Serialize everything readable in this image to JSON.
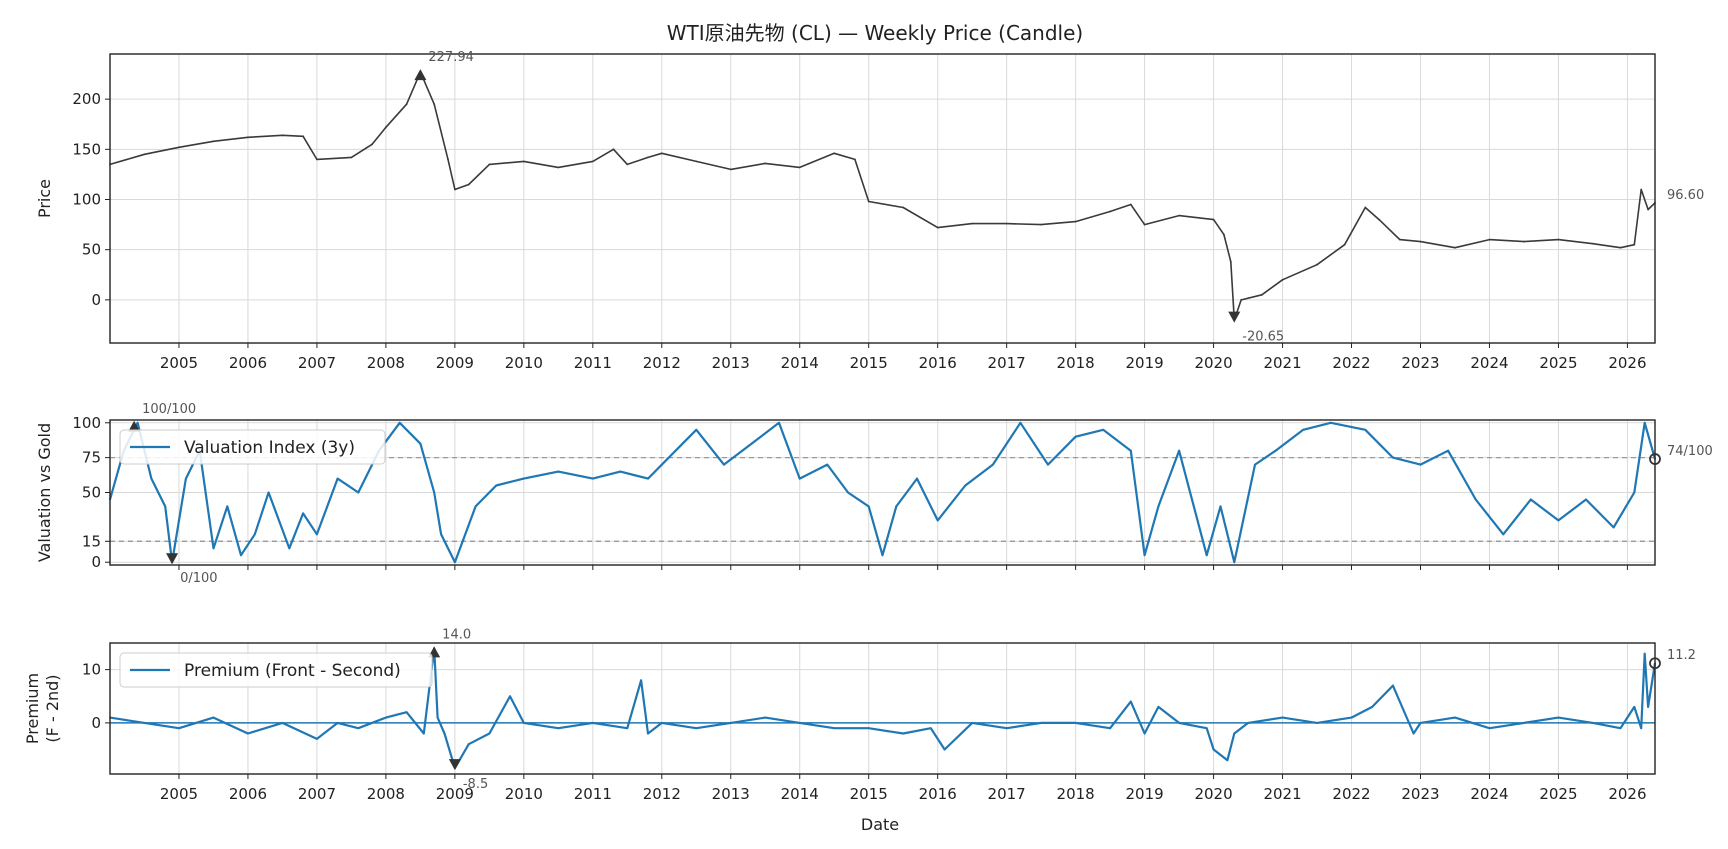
{
  "figure": {
    "title": "WTI原油先物 (CL) — Weekly Price (Candle)",
    "xlabel": "Date",
    "x_tick_labels": [
      "2005",
      "2006",
      "2007",
      "2008",
      "2009",
      "2010",
      "2011",
      "2012",
      "2013",
      "2014",
      "2015",
      "2016",
      "2017",
      "2018",
      "2019",
      "2020",
      "2021",
      "2022",
      "2023",
      "2024",
      "2025",
      "2026"
    ],
    "x_range": [
      2004.0,
      2026.4
    ],
    "colors": {
      "price": "#3a3a3a",
      "series": "#1f77b4",
      "grid": "#d9d9d9",
      "ref": "#999999",
      "marker": "#333333"
    }
  },
  "chart_data": [
    {
      "type": "line",
      "subtype": "candlestick-weekly",
      "ylabel": "Price",
      "ylim": [
        -43,
        245
      ],
      "yticks": [
        0,
        50,
        100,
        150,
        200
      ],
      "grid": true,
      "series": [
        {
          "x": [
            2004.0,
            2004.5,
            2005.0,
            2005.5,
            2006.0,
            2006.5,
            2006.8,
            2007.0,
            2007.5,
            2007.8,
            2008.0,
            2008.3,
            2008.5,
            2008.7,
            2008.9,
            2009.0,
            2009.2,
            2009.5,
            2010.0,
            2010.5,
            2011.0,
            2011.3,
            2011.5,
            2011.8,
            2012.0,
            2012.5,
            2013.0,
            2013.5,
            2014.0,
            2014.5,
            2014.8,
            2015.0,
            2015.5,
            2016.0,
            2016.5,
            2017.0,
            2017.5,
            2018.0,
            2018.5,
            2018.8,
            2019.0,
            2019.5,
            2020.0,
            2020.15,
            2020.25,
            2020.3,
            2020.4,
            2020.7,
            2021.0,
            2021.5,
            2021.9,
            2022.2,
            2022.4,
            2022.7,
            2023.0,
            2023.5,
            2024.0,
            2024.5,
            2025.0,
            2025.5,
            2025.9,
            2026.1,
            2026.2,
            2026.3,
            2026.4
          ],
          "y": [
            135,
            145,
            152,
            158,
            162,
            164,
            163,
            140,
            142,
            155,
            172,
            195,
            227,
            195,
            140,
            110,
            115,
            135,
            138,
            132,
            138,
            150,
            135,
            142,
            146,
            138,
            130,
            136,
            132,
            146,
            140,
            98,
            92,
            72,
            76,
            76,
            75,
            78,
            88,
            95,
            75,
            84,
            80,
            65,
            38,
            -20,
            0,
            5,
            20,
            35,
            55,
            92,
            80,
            60,
            58,
            52,
            60,
            58,
            60,
            56,
            52,
            55,
            110,
            90,
            96.6
          ]
        }
      ],
      "annotations": [
        {
          "label": "227.94",
          "x": 2008.5,
          "y": 227.94,
          "kind": "max"
        },
        {
          "label": "-20.65",
          "x": 2020.3,
          "y": -20.65,
          "kind": "min"
        },
        {
          "label": "96.60",
          "x": 2026.4,
          "y": 96.6,
          "kind": "last"
        }
      ]
    },
    {
      "type": "line",
      "ylabel": "Valuation vs Gold",
      "ylim": [
        -2,
        102
      ],
      "yticks": [
        0,
        15,
        50,
        75,
        100
      ],
      "grid": true,
      "reference_lines": [
        75,
        15
      ],
      "legend": {
        "placement": "top-left",
        "entries": [
          "Valuation Index (3y)"
        ]
      },
      "series": [
        {
          "name": "Valuation Index (3y)",
          "x": [
            2004.0,
            2004.2,
            2004.4,
            2004.6,
            2004.8,
            2004.9,
            2005.1,
            2005.3,
            2005.5,
            2005.7,
            2005.9,
            2006.1,
            2006.3,
            2006.6,
            2006.8,
            2007.0,
            2007.3,
            2007.6,
            2007.9,
            2008.2,
            2008.5,
            2008.7,
            2008.8,
            2009.0,
            2009.3,
            2009.6,
            2010.0,
            2010.5,
            2011.0,
            2011.4,
            2011.8,
            2012.2,
            2012.5,
            2012.9,
            2013.3,
            2013.7,
            2014.0,
            2014.4,
            2014.7,
            2015.0,
            2015.2,
            2015.4,
            2015.7,
            2016.0,
            2016.4,
            2016.8,
            2017.2,
            2017.6,
            2018.0,
            2018.4,
            2018.8,
            2019.0,
            2019.2,
            2019.5,
            2019.9,
            2020.1,
            2020.3,
            2020.6,
            2020.9,
            2021.3,
            2021.7,
            2022.2,
            2022.6,
            2023.0,
            2023.4,
            2023.8,
            2024.2,
            2024.6,
            2025.0,
            2025.4,
            2025.8,
            2026.1,
            2026.25,
            2026.4
          ],
          "y": [
            45,
            80,
            100,
            60,
            40,
            0,
            60,
            80,
            10,
            40,
            5,
            20,
            50,
            10,
            35,
            20,
            60,
            50,
            80,
            100,
            85,
            50,
            20,
            0,
            40,
            55,
            60,
            65,
            60,
            65,
            60,
            80,
            95,
            70,
            85,
            100,
            60,
            70,
            50,
            40,
            5,
            40,
            60,
            30,
            55,
            70,
            100,
            70,
            90,
            95,
            80,
            5,
            40,
            80,
            5,
            40,
            0,
            70,
            80,
            95,
            100,
            95,
            75,
            70,
            80,
            45,
            20,
            45,
            30,
            45,
            25,
            50,
            100,
            74
          ]
        }
      ],
      "annotations": [
        {
          "label": "100/100",
          "x": 2004.35,
          "y": 100,
          "kind": "max"
        },
        {
          "label": "0/100",
          "x": 2004.9,
          "y": 0,
          "kind": "min"
        },
        {
          "label": "74/100",
          "x": 2026.4,
          "y": 74,
          "kind": "last"
        }
      ]
    },
    {
      "type": "line",
      "ylabel": "Premium\n(F - 2nd)",
      "ylim": [
        -9.6,
        15
      ],
      "yticks": [
        0,
        10
      ],
      "grid": true,
      "reference_lines": [
        0
      ],
      "legend": {
        "placement": "top-left",
        "entries": [
          "Premium (Front - Second)"
        ]
      },
      "series": [
        {
          "name": "Premium (Front - Second)",
          "x": [
            2004.0,
            2004.5,
            2005.0,
            2005.5,
            2006.0,
            2006.5,
            2007.0,
            2007.3,
            2007.6,
            2008.0,
            2008.3,
            2008.55,
            2008.7,
            2008.75,
            2008.85,
            2009.0,
            2009.2,
            2009.5,
            2009.8,
            2010.0,
            2010.5,
            2011.0,
            2011.5,
            2011.7,
            2011.8,
            2012.0,
            2012.5,
            2013.0,
            2013.5,
            2014.0,
            2014.5,
            2015.0,
            2015.5,
            2015.9,
            2016.1,
            2016.5,
            2017.0,
            2017.5,
            2018.0,
            2018.5,
            2018.8,
            2019.0,
            2019.2,
            2019.5,
            2019.9,
            2020.0,
            2020.2,
            2020.3,
            2020.5,
            2021.0,
            2021.5,
            2022.0,
            2022.3,
            2022.6,
            2022.9,
            2023.0,
            2023.5,
            2024.0,
            2024.5,
            2025.0,
            2025.5,
            2025.9,
            2026.1,
            2026.2,
            2026.25,
            2026.3,
            2026.4
          ],
          "y": [
            1,
            0,
            -1,
            1,
            -2,
            0,
            -3,
            0,
            -1,
            1,
            2,
            -2,
            14,
            1,
            -2,
            -8.5,
            -4,
            -2,
            5,
            0,
            -1,
            0,
            -1,
            8,
            -2,
            0,
            -1,
            0,
            1,
            0,
            -1,
            -1,
            -2,
            -1,
            -5,
            0,
            -1,
            0,
            0,
            -1,
            4,
            -2,
            3,
            0,
            -1,
            -5,
            -7,
            -2,
            0,
            1,
            0,
            1,
            3,
            7,
            -2,
            0,
            1,
            -1,
            0,
            1,
            0,
            -1,
            3,
            -1,
            13,
            3,
            11.2
          ]
        }
      ],
      "annotations": [
        {
          "label": "14.0",
          "x": 2008.7,
          "y": 14,
          "kind": "max"
        },
        {
          "label": "-8.5",
          "x": 2009.0,
          "y": -8.5,
          "kind": "min"
        },
        {
          "label": "11.2",
          "x": 2026.4,
          "y": 11.2,
          "kind": "last"
        }
      ]
    }
  ]
}
